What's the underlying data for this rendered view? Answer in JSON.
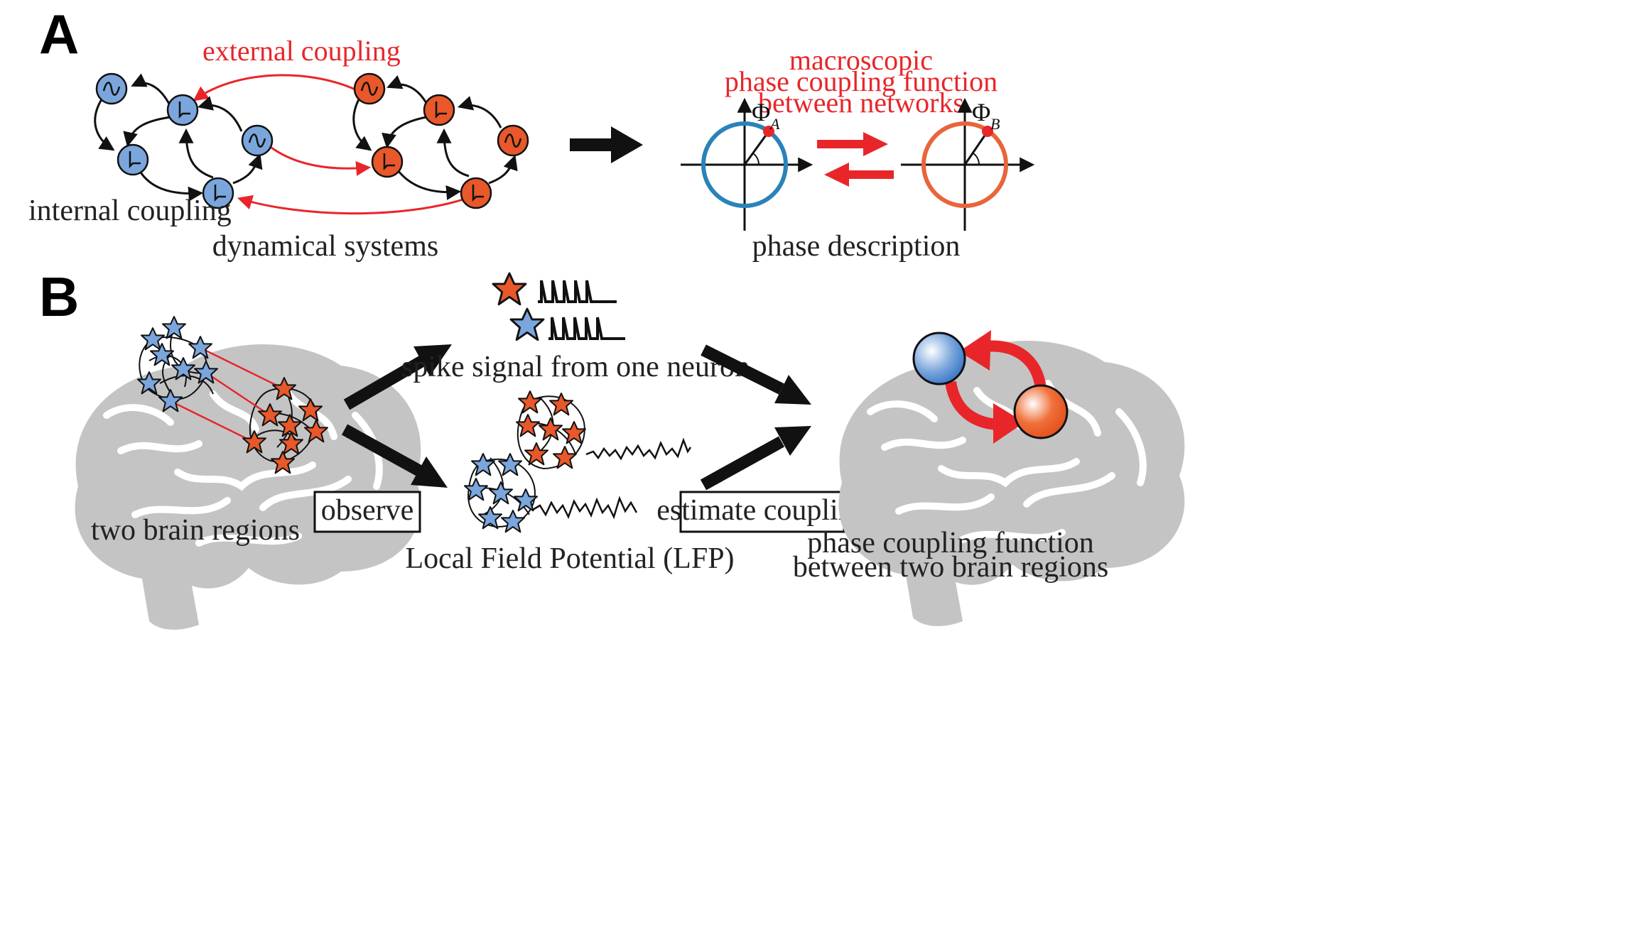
{
  "panels": {
    "a": "A",
    "b": "B"
  },
  "panel_a": {
    "external_coupling": "external coupling",
    "internal_coupling": "internal coupling",
    "dynamical_systems": "dynamical systems",
    "phase_title_1": "macroscopic",
    "phase_title_2": "phase coupling function",
    "phase_title_3": "between networks",
    "phi": "Φ",
    "phi_sub_a": "A",
    "phi_sub_b": "B",
    "phase_description": "phase description"
  },
  "panel_b": {
    "spike_label": "spike signal from one neuron",
    "two_brain_regions": "two brain regions",
    "observe": "observe",
    "lfp_label": "Local Field Potential (LFP)",
    "estimate_coupling": "estimate coupling",
    "result_line_1": "phase coupling function",
    "result_line_2": "between two brain regions"
  },
  "colors": {
    "blue_node": "#7aa6dc",
    "orange_node": "#e8582a",
    "red_arrow": "#e8262a",
    "blue_circle": "#2a83b8",
    "orange_circle": "#e8653a",
    "brain_gray": "#c4c4c4",
    "black_arrow": "#111111"
  }
}
